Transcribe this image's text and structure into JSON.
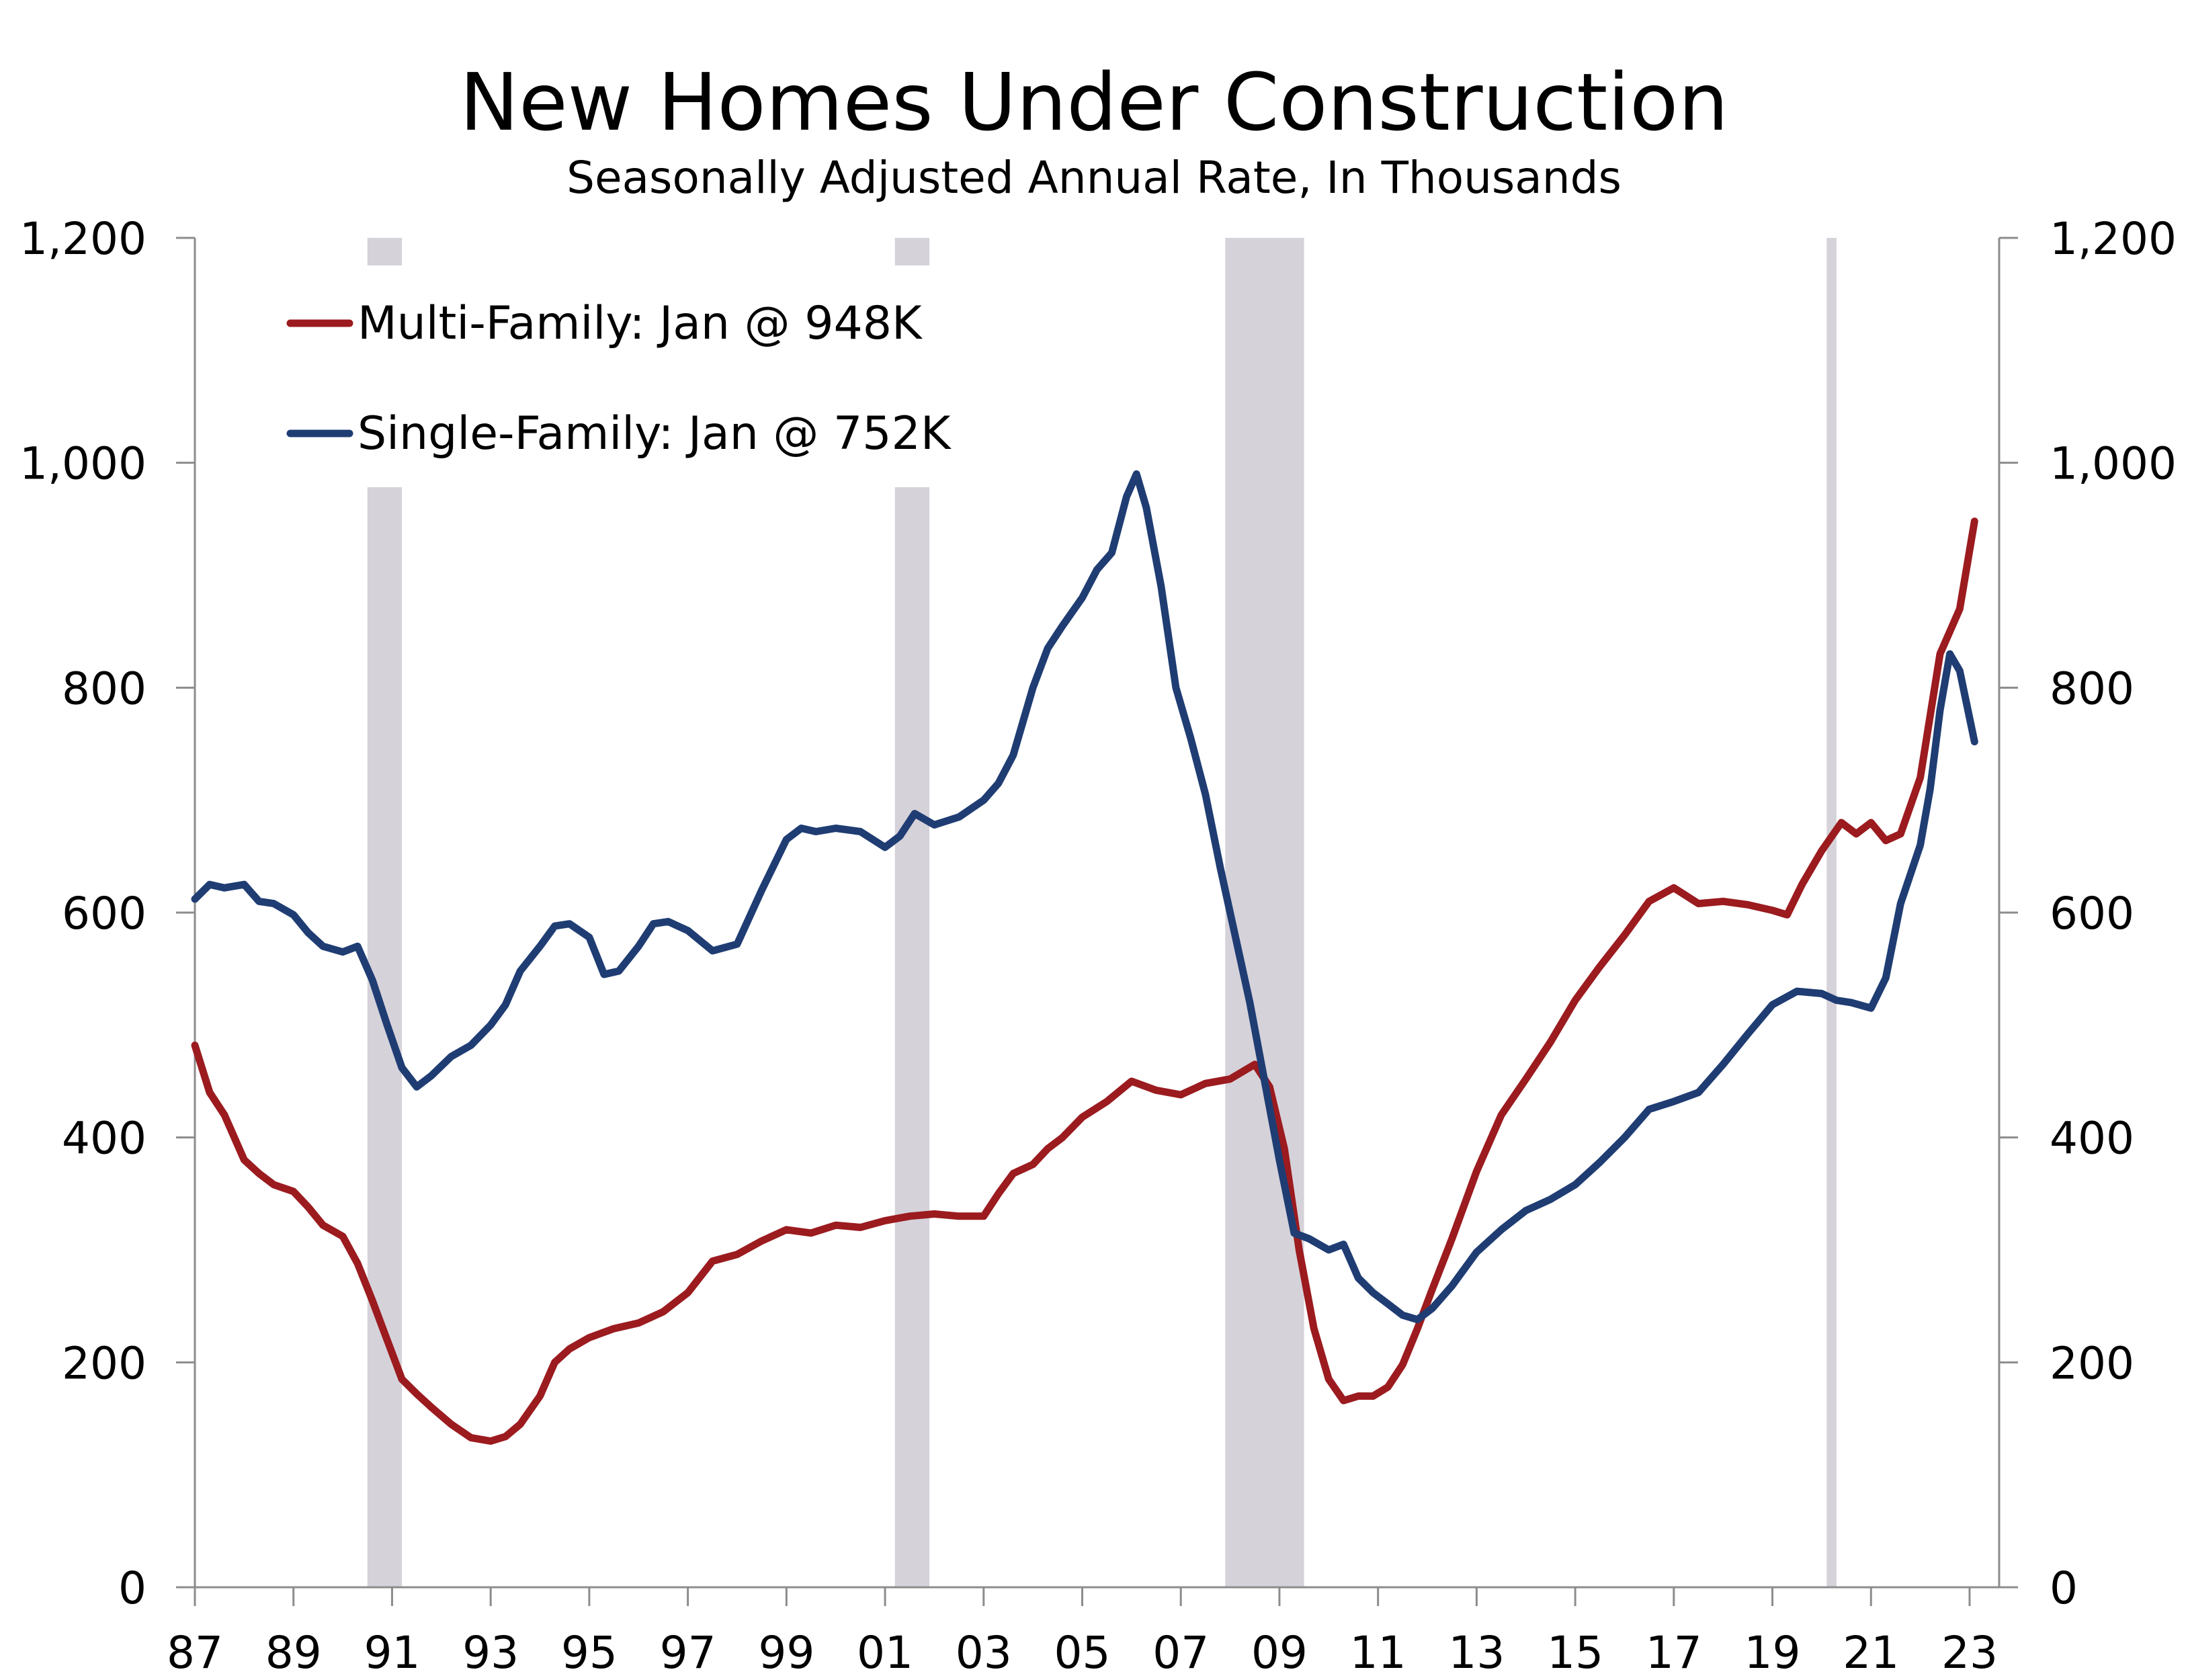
{
  "chart_data": {
    "type": "line",
    "title": "New Homes Under Construction",
    "subtitle": "Seasonally Adjusted Annual Rate, In Thousands",
    "xlabel": "",
    "ylabel": "",
    "ylim": [
      0,
      1200
    ],
    "xlim": [
      1987.0,
      2023.6
    ],
    "y_ticks": [
      "0",
      "200",
      "400",
      "600",
      "800",
      "1,000",
      "1,200"
    ],
    "y_tick_values": [
      0,
      200,
      400,
      600,
      800,
      1000,
      1200
    ],
    "x_tick_labels": [
      "87",
      "89",
      "91",
      "93",
      "95",
      "97",
      "99",
      "01",
      "03",
      "05",
      "07",
      "09",
      "11",
      "13",
      "15",
      "17",
      "19",
      "21",
      "23"
    ],
    "x_tick_values": [
      1987,
      1989,
      1991,
      1993,
      1995,
      1997,
      1999,
      2001,
      2003,
      2005,
      2007,
      2009,
      2011,
      2013,
      2015,
      2017,
      2019,
      2021,
      2023
    ],
    "recessions": [
      {
        "start": 1990.5,
        "end": 1991.2
      },
      {
        "start": 2001.2,
        "end": 2001.9
      },
      {
        "start": 2007.9,
        "end": 2009.5
      },
      {
        "start": 2020.1,
        "end": 2020.3
      }
    ],
    "legend_placement": "top-left",
    "grid": false,
    "series": [
      {
        "name": "Multi-Family: Jan @ 948K",
        "color": "#9b1b1f",
        "x": [
          1987.0,
          1987.3,
          1987.6,
          1988.0,
          1988.3,
          1988.6,
          1989.0,
          1989.3,
          1989.6,
          1990.0,
          1990.3,
          1990.6,
          1990.9,
          1991.2,
          1991.5,
          1991.8,
          1992.2,
          1992.6,
          1993.0,
          1993.3,
          1993.6,
          1994.0,
          1994.3,
          1994.6,
          1995.0,
          1995.5,
          1996.0,
          1996.5,
          1997.0,
          1997.5,
          1998.0,
          1998.5,
          1999.0,
          1999.5,
          2000.0,
          2000.5,
          2001.0,
          2001.5,
          2002.0,
          2002.5,
          2003.0,
          2003.3,
          2003.6,
          2004.0,
          2004.3,
          2004.6,
          2005.0,
          2005.5,
          2006.0,
          2006.5,
          2007.0,
          2007.5,
          2008.0,
          2008.5,
          2008.8,
          2009.1,
          2009.4,
          2009.7,
          2010.0,
          2010.3,
          2010.6,
          2010.9,
          2011.2,
          2011.5,
          2011.8,
          2012.1,
          2012.5,
          2013.0,
          2013.5,
          2014.0,
          2014.5,
          2015.0,
          2015.5,
          2016.0,
          2016.5,
          2017.0,
          2017.5,
          2018.0,
          2018.5,
          2019.0,
          2019.3,
          2019.6,
          2020.0,
          2020.4,
          2020.7,
          2021.0,
          2021.3,
          2021.6,
          2022.0,
          2022.4,
          2022.8,
          2023.1
        ],
        "values": [
          482,
          440,
          420,
          380,
          368,
          358,
          352,
          338,
          322,
          312,
          288,
          255,
          220,
          185,
          172,
          160,
          145,
          133,
          130,
          134,
          145,
          170,
          200,
          212,
          222,
          230,
          235,
          245,
          262,
          290,
          296,
          308,
          318,
          315,
          322,
          320,
          326,
          330,
          332,
          330,
          330,
          350,
          368,
          376,
          390,
          400,
          418,
          432,
          450,
          442,
          438,
          448,
          452,
          465,
          445,
          390,
          300,
          230,
          185,
          166,
          170,
          170,
          178,
          198,
          230,
          265,
          310,
          370,
          420,
          452,
          485,
          522,
          552,
          580,
          610,
          622,
          608,
          610,
          607,
          602,
          598,
          625,
          655,
          680,
          670,
          680,
          664,
          670,
          720,
          830,
          870,
          948
        ]
      },
      {
        "name": "Single-Family: Jan @ 752K",
        "color": "#1f3d73",
        "x": [
          1987.0,
          1987.3,
          1987.6,
          1988.0,
          1988.3,
          1988.6,
          1989.0,
          1989.3,
          1989.6,
          1990.0,
          1990.3,
          1990.6,
          1990.9,
          1991.2,
          1991.5,
          1991.8,
          1992.2,
          1992.6,
          1993.0,
          1993.3,
          1993.6,
          1994.0,
          1994.3,
          1994.6,
          1995.0,
          1995.3,
          1995.6,
          1996.0,
          1996.3,
          1996.6,
          1997.0,
          1997.5,
          1998.0,
          1998.5,
          1999.0,
          1999.3,
          1999.6,
          2000.0,
          2000.5,
          2001.0,
          2001.3,
          2001.6,
          2002.0,
          2002.5,
          2003.0,
          2003.3,
          2003.6,
          2004.0,
          2004.3,
          2004.6,
          2005.0,
          2005.3,
          2005.6,
          2005.9,
          2006.1,
          2006.3,
          2006.6,
          2006.9,
          2007.2,
          2007.5,
          2007.8,
          2008.1,
          2008.4,
          2008.7,
          2009.0,
          2009.3,
          2009.6,
          2010.0,
          2010.3,
          2010.6,
          2010.9,
          2011.2,
          2011.5,
          2011.8,
          2012.1,
          2012.5,
          2013.0,
          2013.5,
          2014.0,
          2014.5,
          2015.0,
          2015.5,
          2016.0,
          2016.5,
          2017.0,
          2017.5,
          2018.0,
          2018.5,
          2019.0,
          2019.5,
          2020.0,
          2020.3,
          2020.6,
          2021.0,
          2021.3,
          2021.6,
          2022.0,
          2022.2,
          2022.4,
          2022.6,
          2022.8,
          2023.1
        ],
        "values": [
          612,
          625,
          622,
          625,
          610,
          608,
          598,
          582,
          570,
          565,
          570,
          540,
          500,
          462,
          445,
          455,
          472,
          482,
          500,
          518,
          548,
          570,
          588,
          590,
          578,
          545,
          548,
          570,
          590,
          592,
          584,
          566,
          572,
          620,
          665,
          675,
          672,
          675,
          672,
          658,
          668,
          688,
          678,
          685,
          700,
          715,
          740,
          800,
          835,
          855,
          880,
          905,
          920,
          970,
          990,
          960,
          890,
          800,
          755,
          705,
          640,
          580,
          520,
          450,
          380,
          315,
          310,
          300,
          305,
          275,
          262,
          252,
          242,
          238,
          248,
          268,
          298,
          318,
          335,
          345,
          358,
          378,
          400,
          425,
          432,
          440,
          465,
          492,
          518,
          530,
          528,
          522,
          520,
          515,
          542,
          608,
          660,
          710,
          780,
          830,
          815,
          752
        ]
      }
    ]
  }
}
